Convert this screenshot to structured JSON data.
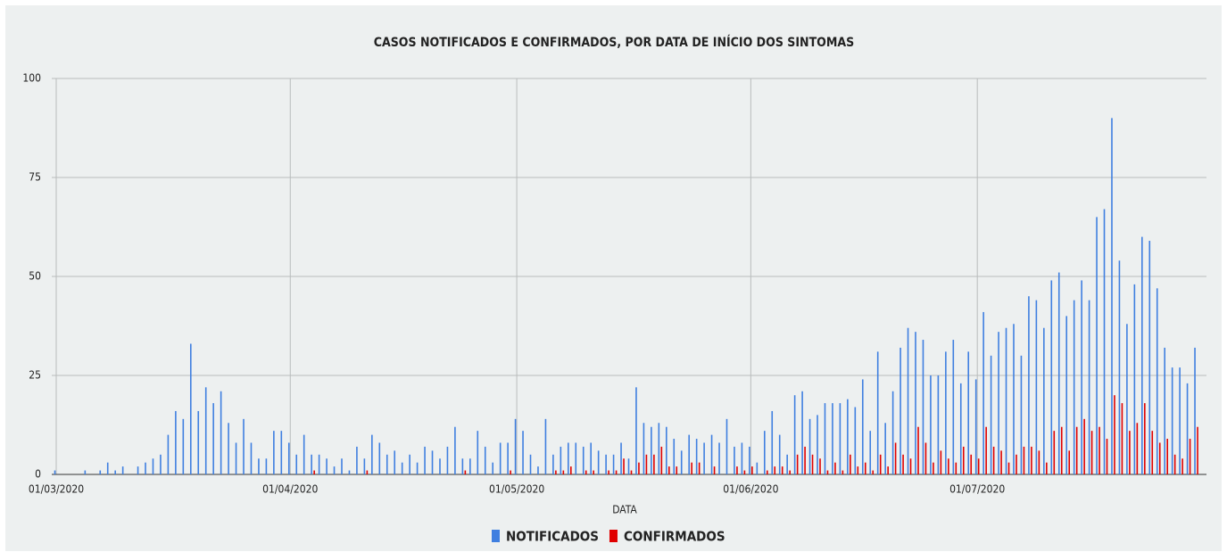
{
  "chart_data": {
    "type": "bar",
    "title": "CASOS NOTIFICADOS E CONFIRMADOS, POR DATA DE INÍCIO DOS SINTOMAS",
    "xlabel": "DATA",
    "x": [
      "01/03/2020",
      "02/03/2020",
      "03/03/2020",
      "04/03/2020",
      "05/03/2020",
      "06/03/2020",
      "07/03/2020",
      "08/03/2020",
      "09/03/2020",
      "10/03/2020",
      "11/03/2020",
      "12/03/2020",
      "13/03/2020",
      "14/03/2020",
      "15/03/2020",
      "16/03/2020",
      "17/03/2020",
      "18/03/2020",
      "19/03/2020",
      "20/03/2020",
      "21/03/2020",
      "22/03/2020",
      "23/03/2020",
      "24/03/2020",
      "25/03/2020",
      "26/03/2020",
      "27/03/2020",
      "28/03/2020",
      "29/03/2020",
      "30/03/2020",
      "31/03/2020",
      "01/04/2020",
      "02/04/2020",
      "03/04/2020",
      "04/04/2020",
      "05/04/2020",
      "06/04/2020",
      "07/04/2020",
      "08/04/2020",
      "09/04/2020",
      "10/04/2020",
      "11/04/2020",
      "12/04/2020",
      "13/04/2020",
      "14/04/2020",
      "15/04/2020",
      "16/04/2020",
      "17/04/2020",
      "18/04/2020",
      "19/04/2020",
      "20/04/2020",
      "21/04/2020",
      "22/04/2020",
      "23/04/2020",
      "24/04/2020",
      "25/04/2020",
      "26/04/2020",
      "27/04/2020",
      "28/04/2020",
      "29/04/2020",
      "30/04/2020",
      "01/05/2020",
      "02/05/2020",
      "03/05/2020",
      "04/05/2020",
      "05/05/2020",
      "06/05/2020",
      "07/05/2020",
      "08/05/2020",
      "09/05/2020",
      "10/05/2020",
      "11/05/2020",
      "12/05/2020",
      "13/05/2020",
      "14/05/2020",
      "15/05/2020",
      "16/05/2020",
      "17/05/2020",
      "18/05/2020",
      "19/05/2020",
      "20/05/2020",
      "21/05/2020",
      "22/05/2020",
      "23/05/2020",
      "24/05/2020",
      "25/05/2020",
      "26/05/2020",
      "27/05/2020",
      "28/05/2020",
      "29/05/2020",
      "30/05/2020",
      "31/05/2020",
      "01/06/2020",
      "02/06/2020",
      "03/06/2020",
      "04/06/2020",
      "05/06/2020",
      "06/06/2020",
      "07/06/2020",
      "08/06/2020",
      "09/06/2020",
      "10/06/2020",
      "11/06/2020",
      "12/06/2020",
      "13/06/2020",
      "14/06/2020",
      "15/06/2020",
      "16/06/2020",
      "17/06/2020",
      "18/06/2020",
      "19/06/2020",
      "20/06/2020",
      "21/06/2020",
      "22/06/2020",
      "23/06/2020",
      "24/06/2020",
      "25/06/2020",
      "26/06/2020",
      "27/06/2020",
      "28/06/2020",
      "29/06/2020",
      "30/06/2020",
      "01/07/2020",
      "02/07/2020",
      "03/07/2020",
      "04/07/2020",
      "05/07/2020",
      "06/07/2020",
      "07/07/2020",
      "08/07/2020",
      "09/07/2020",
      "10/07/2020",
      "11/07/2020",
      "12/07/2020",
      "13/07/2020",
      "14/07/2020",
      "15/07/2020",
      "16/07/2020",
      "17/07/2020",
      "18/07/2020",
      "19/07/2020",
      "20/07/2020",
      "21/07/2020",
      "22/07/2020",
      "23/07/2020",
      "24/07/2020",
      "25/07/2020",
      "26/07/2020",
      "27/07/2020",
      "28/07/2020",
      "29/07/2020",
      "30/07/2020"
    ],
    "series": [
      {
        "name": "NOTIFICADOS",
        "color": "#3f7fe0",
        "values": [
          1,
          0,
          0,
          0,
          1,
          0,
          1,
          3,
          1,
          2,
          0,
          2,
          3,
          4,
          5,
          10,
          16,
          14,
          33,
          16,
          22,
          18,
          21,
          13,
          8,
          14,
          8,
          4,
          4,
          11,
          11,
          8,
          5,
          10,
          5,
          5,
          4,
          2,
          4,
          1,
          7,
          4,
          10,
          8,
          5,
          6,
          3,
          5,
          3,
          7,
          6,
          4,
          7,
          12,
          4,
          4,
          11,
          7,
          3,
          8,
          8,
          14,
          11,
          5,
          2,
          14,
          5,
          7,
          8,
          8,
          7,
          8,
          6,
          5,
          5,
          8,
          4,
          22,
          13,
          12,
          13,
          12,
          9,
          6,
          10,
          9,
          8,
          10,
          8,
          14,
          7,
          8,
          7,
          3,
          11,
          16,
          10,
          5,
          20,
          21,
          14,
          15,
          18,
          18,
          18,
          19,
          17,
          24,
          11,
          31,
          13,
          21,
          32,
          37,
          36,
          34,
          25,
          25,
          31,
          34,
          23,
          31,
          24,
          41,
          30,
          36,
          37,
          38,
          30,
          45,
          44,
          37,
          49,
          51,
          40,
          44,
          49,
          44,
          65,
          67,
          90,
          54,
          38,
          48,
          60,
          59,
          47,
          32,
          27,
          27,
          23,
          32
        ]
      },
      {
        "name": "CONFIRMADOS",
        "color": "#e00000",
        "values": [
          0,
          0,
          0,
          0,
          0,
          0,
          0,
          0,
          0,
          0,
          0,
          0,
          0,
          0,
          0,
          0,
          0,
          0,
          0,
          0,
          0,
          0,
          0,
          0,
          0,
          0,
          0,
          0,
          0,
          0,
          0,
          0,
          0,
          0,
          1,
          0,
          0,
          0,
          0,
          0,
          0,
          1,
          0,
          0,
          0,
          0,
          0,
          0,
          0,
          0,
          0,
          0,
          0,
          0,
          1,
          0,
          0,
          0,
          0,
          0,
          1,
          0,
          0,
          0,
          0,
          0,
          1,
          1,
          2,
          0,
          1,
          1,
          0,
          1,
          1,
          4,
          1,
          3,
          5,
          5,
          7,
          2,
          2,
          0,
          3,
          3,
          0,
          2,
          0,
          0,
          2,
          1,
          2,
          0,
          1,
          2,
          2,
          1,
          5,
          7,
          5,
          4,
          1,
          3,
          1,
          5,
          2,
          3,
          1,
          5,
          2,
          8,
          5,
          4,
          12,
          8,
          3,
          6,
          4,
          3,
          7,
          5,
          4,
          12,
          7,
          6,
          3,
          5,
          7,
          7,
          6,
          3,
          11,
          12,
          6,
          12,
          14,
          11,
          12,
          9,
          20,
          18,
          11,
          13,
          18,
          11,
          8,
          9,
          5,
          4,
          9,
          12
        ]
      }
    ],
    "xlim": [
      "01/03/2020",
      "31/07/2020"
    ],
    "xticks": [
      "01/03/2020",
      "01/04/2020",
      "01/05/2020",
      "01/06/2020",
      "01/07/2020"
    ],
    "ylim": [
      0,
      100
    ],
    "yticks": [
      0,
      25,
      50,
      75,
      100
    ],
    "grid": true,
    "legend": "bottom"
  }
}
